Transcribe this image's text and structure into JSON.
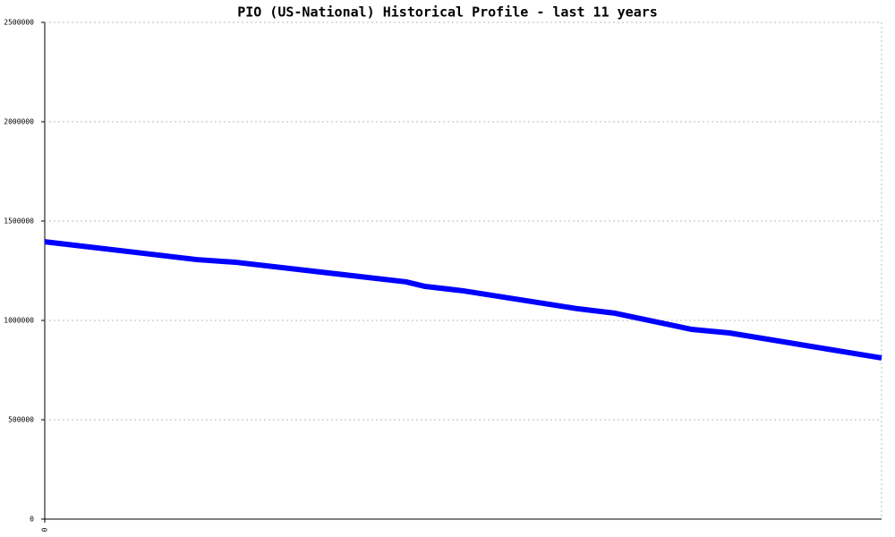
{
  "chart_data": {
    "type": "line",
    "title": "PIO (US-National) Historical Profile - last 11 years",
    "x": [
      0,
      4,
      5,
      9.5,
      10,
      11,
      14,
      15,
      17,
      18,
      22
    ],
    "series": [
      {
        "color": "#0000ff",
        "values": [
          1396000,
          1306000,
          1293000,
          1194000,
          1171000,
          1149000,
          1059000,
          1036000,
          955000,
          937000,
          811000
        ]
      }
    ],
    "xlim": [
      0,
      22
    ],
    "xticks": [
      0
    ],
    "ylim": [
      0,
      2500000
    ],
    "yticks": [
      0,
      500000,
      1000000,
      1500000,
      2000000,
      2500000
    ],
    "grid": true
  }
}
